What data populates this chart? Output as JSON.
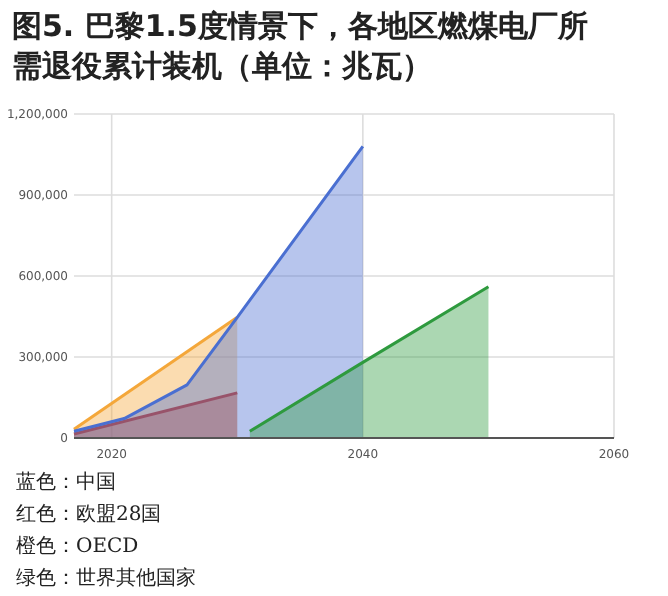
{
  "chart_data": {
    "type": "area",
    "title": "图5. 巴黎1.5度情景下，各地区燃煤电厂所需退役累计装机（单位：兆瓦）",
    "xlim": [
      2017,
      2060
    ],
    "xticks": [
      2020,
      2040,
      2060
    ],
    "ylim": [
      0,
      1200000
    ],
    "yticks": [
      {
        "value": 0,
        "label": "0"
      },
      {
        "value": 300000,
        "label": "300,000"
      },
      {
        "value": 600000,
        "label": "600,000"
      },
      {
        "value": 900000,
        "label": "900,000"
      },
      {
        "value": 1200000,
        "label": "1,200,000"
      }
    ],
    "grid": true,
    "series": [
      {
        "color": "#f4a73a",
        "x": [
          2017,
          2030
        ],
        "values": [
          32000,
          447000
        ]
      },
      {
        "color": "#cc4125",
        "x": [
          2017,
          2030
        ],
        "values": [
          15000,
          167000
        ]
      },
      {
        "color": "#4a6fd1",
        "x": [
          2017,
          2021,
          2026,
          2030,
          2040
        ],
        "values": [
          25000,
          72000,
          197000,
          447000,
          1080000
        ]
      },
      {
        "color": "#2e9a3e",
        "x": [
          2031,
          2040,
          2050
        ],
        "values": [
          25000,
          280000,
          560000
        ]
      }
    ],
    "annotations": [
      "蓝色：中国",
      "红色：欧盟28国",
      "橙色：OECD",
      "绿色：世界其他国家"
    ]
  }
}
